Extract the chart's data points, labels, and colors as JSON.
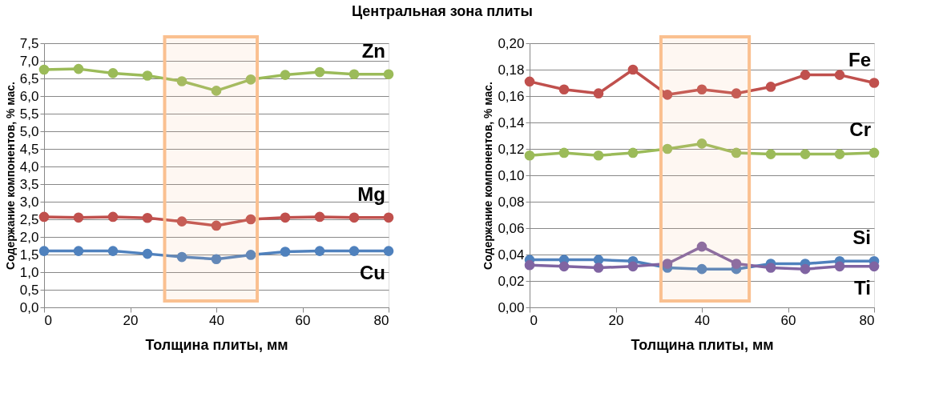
{
  "chart_data": [
    {
      "type": "line",
      "title": "Центральная зона плиты",
      "xlabel": "Толщина плиты, мм",
      "ylabel": "Содержание компонентов, % мас.",
      "x": [
        0,
        8,
        16,
        24,
        32,
        40,
        48,
        56,
        64,
        72,
        80
      ],
      "series": [
        {
          "name": "Zn",
          "color": "#9bbb59",
          "values": [
            6.75,
            6.77,
            6.65,
            6.58,
            6.42,
            6.15,
            6.47,
            6.6,
            6.68,
            6.62,
            6.62
          ]
        },
        {
          "name": "Mg",
          "color": "#c0504d",
          "values": [
            2.57,
            2.55,
            2.57,
            2.54,
            2.44,
            2.32,
            2.5,
            2.55,
            2.57,
            2.55,
            2.55
          ]
        },
        {
          "name": "Cu",
          "color": "#4f81bd",
          "values": [
            1.6,
            1.6,
            1.6,
            1.52,
            1.43,
            1.37,
            1.49,
            1.58,
            1.6,
            1.6,
            1.6
          ]
        }
      ],
      "xlim": [
        0,
        80
      ],
      "xticks": [
        0,
        20,
        40,
        60,
        80
      ],
      "ylim": [
        0,
        7.5
      ],
      "yticks": [
        {
          "value": 0,
          "label": "0,0"
        },
        {
          "value": 0.5,
          "label": "0,5"
        },
        {
          "value": 1,
          "label": "1,0"
        },
        {
          "value": 1.5,
          "label": "1,5"
        },
        {
          "value": 2,
          "label": "2,0"
        },
        {
          "value": 2.5,
          "label": "2,5"
        },
        {
          "value": 3,
          "label": "3,0"
        },
        {
          "value": 3.5,
          "label": "3,5"
        },
        {
          "value": 4,
          "label": "4,0"
        },
        {
          "value": 4.5,
          "label": "4,5"
        },
        {
          "value": 5,
          "label": "5,0"
        },
        {
          "value": 5.5,
          "label": "5,5"
        },
        {
          "value": 6,
          "label": "6,0"
        },
        {
          "value": 6.5,
          "label": "6,5"
        },
        {
          "value": 7,
          "label": "7,0"
        },
        {
          "value": 7.5,
          "label": "7,5"
        }
      ],
      "bands": [
        {
          "axis": "x",
          "from": 28,
          "to": 49.5,
          "color": "#fac090"
        }
      ],
      "grid": "y",
      "marker": "circle",
      "legend": false
    },
    {
      "type": "line",
      "xlabel": "Толщина плиты, мм",
      "ylabel": "Содержание компонентов, % мас.",
      "x": [
        0,
        8,
        16,
        24,
        32,
        40,
        48,
        56,
        64,
        72,
        80
      ],
      "series": [
        {
          "name": "Fe",
          "color": "#c0504d",
          "values": [
            0.171,
            0.165,
            0.162,
            0.18,
            0.161,
            0.165,
            0.162,
            0.167,
            0.176,
            0.176,
            0.17
          ]
        },
        {
          "name": "Cr",
          "color": "#9bbb59",
          "values": [
            0.115,
            0.117,
            0.115,
            0.117,
            0.12,
            0.124,
            0.117,
            0.116,
            0.116,
            0.116,
            0.117
          ]
        },
        {
          "name": "Si",
          "color": "#4f81bd",
          "values": [
            0.036,
            0.036,
            0.036,
            0.035,
            0.03,
            0.029,
            0.029,
            0.033,
            0.033,
            0.035,
            0.035
          ]
        },
        {
          "name": "Ti",
          "color": "#8064a2",
          "values": [
            0.032,
            0.031,
            0.03,
            0.031,
            0.033,
            0.046,
            0.033,
            0.03,
            0.029,
            0.031,
            0.031
          ]
        }
      ],
      "xlim": [
        0,
        80
      ],
      "xticks": [
        0,
        20,
        40,
        60,
        80
      ],
      "ylim": [
        0,
        0.2
      ],
      "yticks": [
        {
          "value": 0,
          "label": "0,00"
        },
        {
          "value": 0.02,
          "label": "0,02"
        },
        {
          "value": 0.04,
          "label": "0,04"
        },
        {
          "value": 0.06,
          "label": "0,06"
        },
        {
          "value": 0.08,
          "label": "0,08"
        },
        {
          "value": 0.1,
          "label": "0,10"
        },
        {
          "value": 0.12,
          "label": "0,12"
        },
        {
          "value": 0.14,
          "label": "0,14"
        },
        {
          "value": 0.16,
          "label": "0,16"
        },
        {
          "value": 0.18,
          "label": "0,18"
        },
        {
          "value": 0.2,
          "label": "0,20"
        }
      ],
      "bands": [
        {
          "axis": "x",
          "from": 30.5,
          "to": 51,
          "color": "#fac090"
        }
      ],
      "grid": "y",
      "marker": "circle",
      "legend": false
    }
  ]
}
